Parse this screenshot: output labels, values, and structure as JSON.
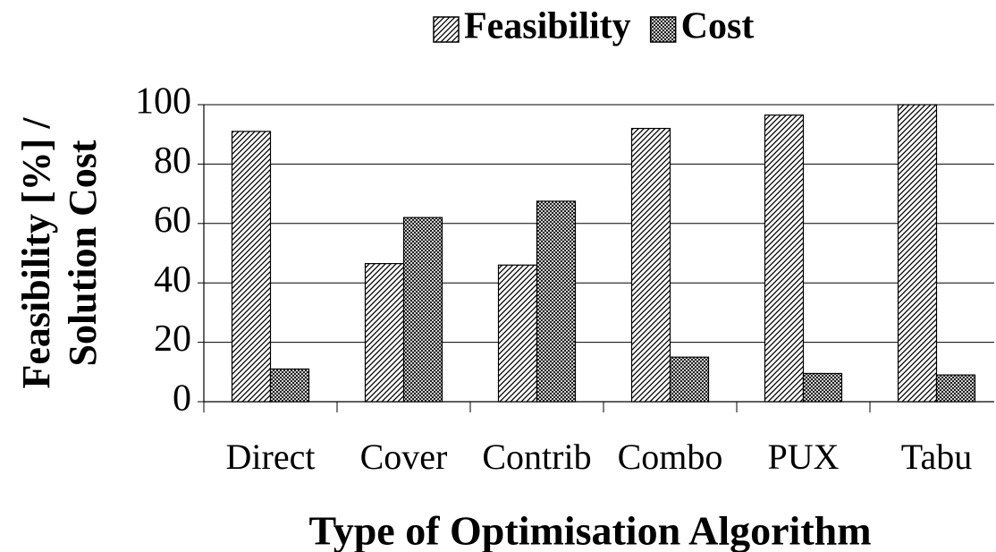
{
  "chart_data": {
    "type": "bar",
    "legend": "top",
    "ylabel": [
      "Feasibility [%] /",
      "Solution Cost"
    ],
    "xlabel": "Type of Optimisation Algorithm",
    "categories": [
      "Direct",
      "Cover",
      "Contrib",
      "Combo",
      "PUX",
      "Tabu"
    ],
    "series": [
      {
        "name": "Feasibility",
        "color": "#000000",
        "pattern": "diagonal",
        "values": [
          91,
          46.5,
          46,
          92,
          96.5,
          100
        ]
      },
      {
        "name": "Cost",
        "color": "#000000",
        "pattern": "crosshatch",
        "values": [
          11,
          62,
          67.5,
          15,
          9.5,
          9
        ]
      }
    ],
    "ylim": [
      0,
      100
    ],
    "yticks": [
      0,
      20,
      40,
      60,
      80,
      100
    ],
    "grid": true
  }
}
